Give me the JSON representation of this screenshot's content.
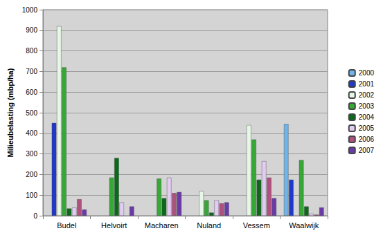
{
  "chart_data": {
    "type": "bar",
    "y_label": "Milieubelasting (mbp/ha)",
    "categories": [
      "Budel",
      "Helvoirt",
      "Macharen",
      "Nuland",
      "Vessem",
      "Waalwijk"
    ],
    "series": [
      {
        "name": "2000",
        "color": "#6fb4ea",
        "values": [
          null,
          null,
          null,
          null,
          null,
          445
        ]
      },
      {
        "name": "2001",
        "color": "#1f3acb",
        "values": [
          450,
          null,
          null,
          null,
          null,
          175
        ]
      },
      {
        "name": "2002",
        "color": "#e6f7e6",
        "values": [
          920,
          null,
          null,
          120,
          440,
          null
        ]
      },
      {
        "name": "2003",
        "color": "#35a835",
        "values": [
          720,
          185,
          180,
          75,
          370,
          270
        ]
      },
      {
        "name": "2004",
        "color": "#0a6a1a",
        "values": [
          35,
          280,
          85,
          15,
          175,
          45
        ]
      },
      {
        "name": "2005",
        "color": "#e2ccf2",
        "values": [
          40,
          65,
          185,
          75,
          265,
          10
        ]
      },
      {
        "name": "2006",
        "color": "#b0507e",
        "values": [
          80,
          null,
          110,
          60,
          185,
          5
        ]
      },
      {
        "name": "2007",
        "color": "#6a3aa8",
        "values": [
          30,
          45,
          115,
          65,
          85,
          40
        ]
      }
    ],
    "ylim": [
      0,
      1000
    ],
    "yticks": [
      0,
      100,
      200,
      300,
      400,
      500,
      600,
      700,
      800,
      900,
      1000
    ],
    "grid": true,
    "legend": "right"
  }
}
